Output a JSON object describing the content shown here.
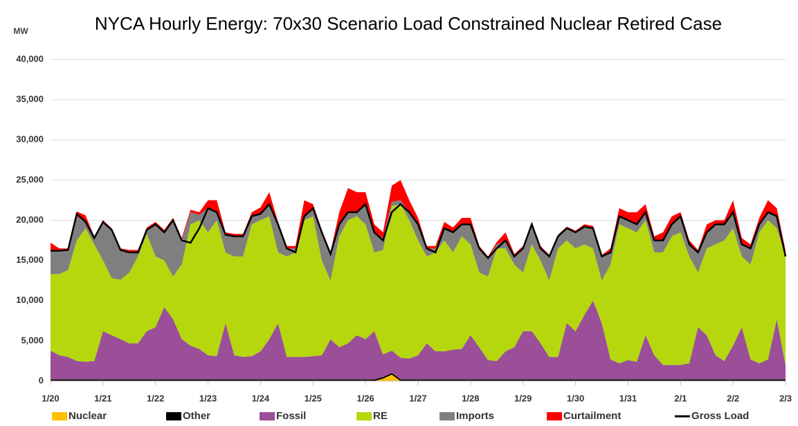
{
  "chart_data": {
    "type": "area",
    "stacked": true,
    "title": "NYCA Hourly Energy: 70x30 Scenario Load Constrained Nuclear Retired Case",
    "y_label": "MW",
    "categories": [
      "1/20",
      null,
      null,
      null,
      null,
      null,
      "1/21",
      null,
      null,
      null,
      null,
      null,
      "1/22",
      null,
      null,
      null,
      null,
      null,
      "1/23",
      null,
      null,
      null,
      null,
      null,
      "1/24",
      null,
      null,
      null,
      null,
      null,
      "1/25",
      null,
      null,
      null,
      null,
      null,
      "1/26",
      null,
      null,
      null,
      null,
      null,
      "1/27",
      null,
      null,
      null,
      null,
      null,
      "1/28",
      null,
      null,
      null,
      null,
      null,
      "1/29",
      null,
      null,
      null,
      null,
      null,
      "1/30",
      null,
      null,
      null,
      null,
      null,
      "1/31",
      null,
      null,
      null,
      null,
      null,
      "2/1",
      null,
      null,
      null,
      null,
      null,
      "2/2",
      null,
      null,
      null,
      null,
      null,
      "2/3"
    ],
    "ylim": [
      0,
      40000
    ],
    "yticks": [
      0,
      {
        "value": 5000,
        "label": "5,000"
      },
      {
        "value": 10000,
        "label": "10,000"
      },
      {
        "value": 15000,
        "label": "15,000"
      },
      {
        "value": 20000,
        "label": "20,000"
      },
      {
        "value": 25000,
        "label": "25,000"
      },
      {
        "value": 30000,
        "label": "30,000"
      },
      {
        "value": 35000,
        "label": "35,000"
      },
      {
        "value": 40000,
        "label": "40,000"
      }
    ],
    "grid": true,
    "legend": "bottom",
    "series": [
      {
        "name": "Nuclear",
        "color": "#ffc000",
        "values": [
          0,
          0,
          0,
          0,
          0,
          0,
          0,
          0,
          0,
          0,
          0,
          0,
          0,
          0,
          0,
          0,
          0,
          0,
          0,
          0,
          0,
          0,
          0,
          0,
          0,
          0,
          0,
          0,
          0,
          0,
          0,
          0,
          0,
          0,
          0,
          0,
          0,
          0,
          300,
          800,
          0,
          0,
          0,
          0,
          0,
          0,
          0,
          0,
          0,
          0,
          0,
          0,
          0,
          0,
          0,
          0,
          0,
          0,
          0,
          0,
          0,
          0,
          0,
          0,
          0,
          0,
          0,
          0,
          0,
          0,
          0,
          0,
          0,
          0,
          0,
          0,
          0,
          0,
          0,
          0,
          0,
          0,
          0,
          0,
          0
        ]
      },
      {
        "name": "Other",
        "color": "#000000",
        "values": [
          200,
          200,
          200,
          200,
          200,
          200,
          200,
          200,
          200,
          200,
          200,
          200,
          200,
          200,
          200,
          200,
          200,
          200,
          200,
          200,
          200,
          200,
          200,
          200,
          200,
          200,
          200,
          200,
          200,
          200,
          200,
          200,
          200,
          200,
          200,
          200,
          200,
          200,
          200,
          200,
          200,
          200,
          200,
          200,
          200,
          200,
          200,
          200,
          200,
          200,
          200,
          200,
          200,
          200,
          200,
          200,
          200,
          200,
          200,
          200,
          200,
          200,
          200,
          200,
          200,
          200,
          200,
          200,
          200,
          200,
          200,
          200,
          200,
          200,
          200,
          200,
          200,
          200,
          200,
          200,
          200,
          200,
          200,
          200,
          200
        ]
      },
      {
        "name": "Fossil",
        "color": "#9a4f98",
        "values": [
          3600,
          3000,
          2800,
          2300,
          2200,
          2300,
          6000,
          5500,
          5000,
          4500,
          4500,
          6000,
          6500,
          9000,
          7500,
          5000,
          4200,
          3800,
          3000,
          2900,
          7000,
          3000,
          2800,
          2900,
          3500,
          5000,
          7000,
          2800,
          2800,
          2800,
          2900,
          3000,
          5000,
          4000,
          4500,
          5500,
          5000,
          6000,
          2800,
          2800,
          2700,
          2600,
          3000,
          4500,
          3500,
          3500,
          3700,
          3800,
          5500,
          4000,
          2400,
          2300,
          3500,
          4000,
          6000,
          6000,
          4500,
          2800,
          2800,
          7000,
          6000,
          8000,
          9800,
          7000,
          2500,
          2000,
          2400,
          2200,
          5500,
          3000,
          1800,
          1800,
          1800,
          2000,
          6500,
          5500,
          3000,
          2300,
          4200,
          6500,
          2500,
          2000,
          2500,
          7500,
          1800
        ]
      },
      {
        "name": "RE",
        "color": "#b6d70e",
        "values": [
          9500,
          10100,
          10800,
          15000,
          16600,
          14500,
          8800,
          7100,
          7400,
          8800,
          10800,
          12100,
          8800,
          5800,
          5300,
          9300,
          15100,
          16000,
          15300,
          16900,
          8800,
          12300,
          12500,
          16400,
          16300,
          15300,
          8800,
          12500,
          13000,
          17000,
          17400,
          11800,
          7300,
          13800,
          15300,
          14800,
          14300,
          9800,
          13000,
          18000,
          19100,
          17200,
          14300,
          10800,
          12300,
          13800,
          12100,
          14000,
          11300,
          9300,
          10400,
          14000,
          12800,
          10300,
          7300,
          10800,
          10300,
          9500,
          13500,
          10300,
          10300,
          8800,
          6500,
          5300,
          11800,
          17300,
          16400,
          16100,
          14300,
          12800,
          14000,
          16000,
          16500,
          13300,
          6800,
          10800,
          13800,
          15000,
          14600,
          8800,
          11800,
          16300,
          17300,
          11300,
          13500
        ]
      },
      {
        "name": "Imports",
        "color": "#7f7f7f",
        "values": [
          2900,
          2900,
          2500,
          3000,
          800,
          800,
          4800,
          6000,
          3700,
          2500,
          500,
          500,
          4000,
          3500,
          7000,
          3000,
          1500,
          700,
          3000,
          1000,
          2200,
          2500,
          2500,
          1000,
          800,
          1500,
          3500,
          1000,
          500,
          500,
          1000,
          3500,
          3300,
          1500,
          1000,
          500,
          2500,
          2500,
          1500,
          500,
          500,
          1000,
          2000,
          1000,
          500,
          1500,
          2500,
          1500,
          2500,
          3000,
          2300,
          500,
          1000,
          1000,
          3000,
          2500,
          1500,
          3000,
          1500,
          1500,
          2000,
          2200,
          2500,
          3000,
          1500,
          1000,
          1000,
          1000,
          1000,
          1500,
          1500,
          1500,
          2000,
          1500,
          2500,
          2000,
          2500,
          2000,
          2000,
          1500,
          2000,
          1000,
          1000,
          1500,
          200
        ]
      },
      {
        "name": "Curtailment",
        "color": "#ff0000",
        "values": [
          1000,
          300,
          200,
          600,
          800,
          200,
          200,
          200,
          200,
          300,
          300,
          300,
          300,
          300,
          300,
          300,
          300,
          300,
          1000,
          1500,
          300,
          300,
          300,
          500,
          800,
          1500,
          300,
          300,
          300,
          2000,
          500,
          300,
          300,
          1500,
          3000,
          2500,
          1500,
          1000,
          700,
          2000,
          2500,
          1500,
          800,
          300,
          300,
          800,
          600,
          800,
          800,
          300,
          200,
          300,
          1000,
          300,
          300,
          300,
          300,
          200,
          200,
          200,
          200,
          300,
          300,
          200,
          500,
          1000,
          1000,
          1500,
          1000,
          500,
          1000,
          1000,
          500,
          500,
          300,
          1000,
          500,
          500,
          1500,
          800,
          500,
          800,
          1500,
          1000,
          500
        ]
      },
      {
        "name": "Gross Load",
        "color": "#000000",
        "type": "line",
        "values": [
          16200,
          16200,
          16300,
          20800,
          19800,
          17800,
          19800,
          18800,
          16300,
          16000,
          16000,
          18800,
          19500,
          18500,
          20000,
          17500,
          17200,
          19000,
          21500,
          21000,
          18200,
          18000,
          18000,
          20500,
          20800,
          22000,
          19500,
          16500,
          16000,
          20500,
          21500,
          18500,
          15800,
          19500,
          21000,
          21000,
          22000,
          18500,
          17500,
          21000,
          22000,
          21000,
          19500,
          16500,
          16000,
          19000,
          18500,
          19500,
          19500,
          16500,
          15300,
          16500,
          17500,
          15500,
          16500,
          19500,
          16500,
          15500,
          18000,
          19000,
          18500,
          19200,
          19000,
          15500,
          16000,
          20500,
          20000,
          19500,
          21000,
          17500,
          17500,
          19500,
          20500,
          17000,
          16000,
          18500,
          19500,
          19500,
          21000,
          17000,
          16500,
          19500,
          21000,
          20500,
          15500
        ]
      }
    ]
  }
}
